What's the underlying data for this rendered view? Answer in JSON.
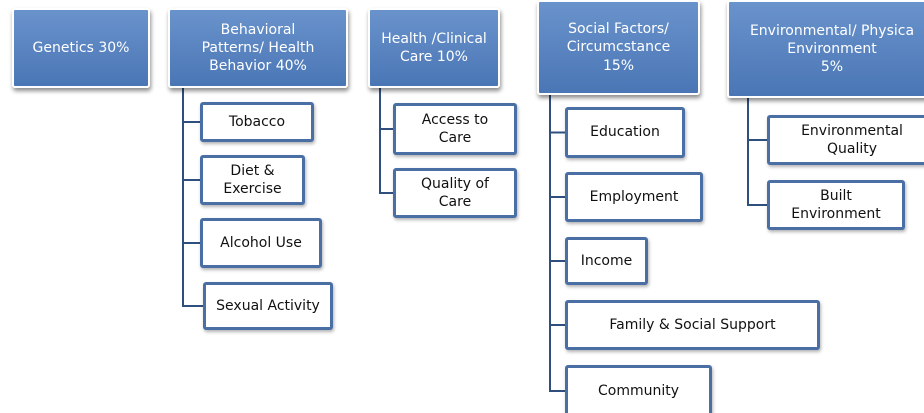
{
  "nodes": [
    {
      "lines": [
        "Genetics 30%"
      ],
      "children": []
    },
    {
      "lines": [
        "Behavioral",
        "Patterns/ Health",
        "Behavior 40%"
      ],
      "children": [
        {
          "lines": [
            "Tobacco"
          ]
        },
        {
          "lines": [
            "Diet &",
            "Exercise"
          ]
        },
        {
          "lines": [
            "Alcohol Use"
          ]
        },
        {
          "lines": [
            "Sexual Activity"
          ]
        }
      ]
    },
    {
      "lines": [
        "Health /Clinical",
        "Care 10%"
      ],
      "children": [
        {
          "lines": [
            "Access to",
            "Care"
          ]
        },
        {
          "lines": [
            "Quality of",
            "Care"
          ]
        }
      ]
    },
    {
      "lines": [
        "Social Factors/",
        "Circumcstance",
        "15%"
      ],
      "children": [
        {
          "lines": [
            "Education"
          ]
        },
        {
          "lines": [
            "Employment"
          ]
        },
        {
          "lines": [
            "Income"
          ]
        },
        {
          "lines": [
            "Family & Social Support"
          ]
        },
        {
          "lines": [
            "Community"
          ]
        }
      ]
    },
    {
      "lines": [
        "Environmental/ Physica",
        "Environment",
        "5%"
      ],
      "children": [
        {
          "lines": [
            "Environmental",
            "Quality"
          ]
        },
        {
          "lines": [
            "Built",
            "Environment"
          ]
        }
      ]
    }
  ]
}
